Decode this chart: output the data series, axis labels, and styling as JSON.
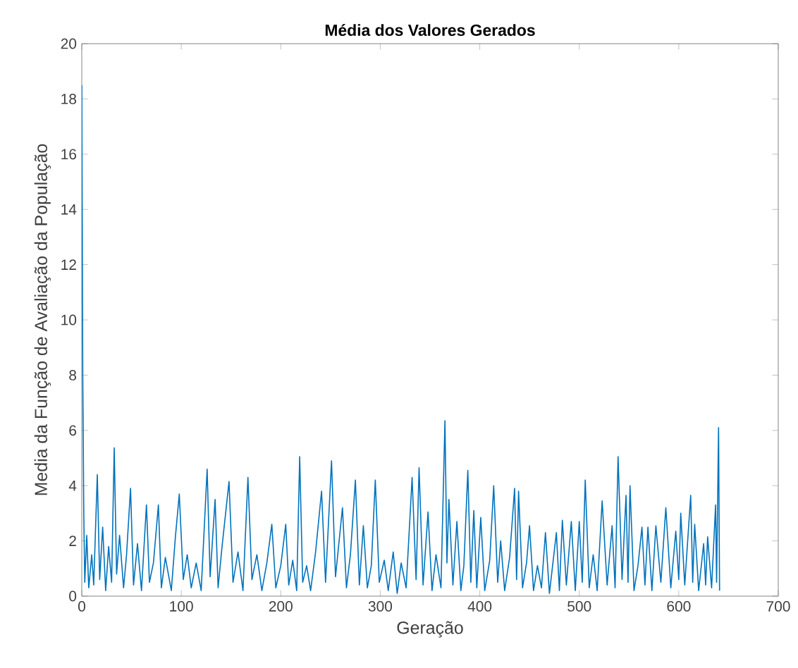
{
  "chart_data": {
    "type": "line",
    "title": "Média dos Valores Gerados",
    "xlabel": "Geração",
    "ylabel": "Media da Função de Avaliação da População",
    "x": [
      0,
      1,
      2,
      3,
      5,
      7,
      10,
      12,
      15.6,
      18,
      21,
      24,
      27,
      30,
      32.6,
      35,
      38,
      42,
      45,
      49,
      52,
      56,
      60,
      65,
      68,
      72,
      77,
      80,
      84,
      90,
      94,
      98,
      102,
      106,
      110,
      115,
      120,
      126,
      129,
      134,
      137,
      141,
      148,
      152,
      157,
      162,
      167,
      171,
      176,
      181,
      186,
      191,
      195,
      200,
      205,
      208,
      212,
      216,
      219,
      222,
      226,
      230,
      235,
      241,
      245,
      251,
      255,
      262,
      266,
      270,
      275,
      279,
      283,
      287,
      291,
      295,
      299,
      304,
      308,
      313,
      317,
      321,
      326,
      332,
      336,
      339,
      343,
      348,
      352,
      356,
      361,
      365,
      367,
      369,
      373,
      377,
      381,
      384,
      388,
      391,
      394,
      397,
      401,
      405,
      410,
      414,
      418,
      421,
      425,
      430,
      435,
      437,
      439,
      443,
      447,
      450,
      454,
      458,
      462,
      466,
      470,
      477,
      480,
      483,
      487,
      492,
      496,
      500,
      503,
      506,
      510,
      514,
      518,
      523,
      528,
      533,
      536,
      539,
      543,
      547,
      549,
      551,
      555,
      559,
      563,
      566,
      569,
      573,
      577,
      582,
      587,
      592,
      597,
      600,
      602,
      606,
      612,
      614,
      616,
      620,
      625,
      627,
      629,
      633,
      637,
      638,
      640,
      641
    ],
    "values": [
      18.5,
      8,
      3,
      0.5,
      2.2,
      0.3,
      1.5,
      0.4,
      4.4,
      0.6,
      2.5,
      0.2,
      1.8,
      0.5,
      5.37,
      0.8,
      2.2,
      0.3,
      1.5,
      3.9,
      0.4,
      1.9,
      0.2,
      3.3,
      0.5,
      1.2,
      3.3,
      0.3,
      1.4,
      0.2,
      2.1,
      3.7,
      0.6,
      1.5,
      0.3,
      1.2,
      0.2,
      4.6,
      0.7,
      3.5,
      0.3,
      1.8,
      4.15,
      0.5,
      1.6,
      0.2,
      4.3,
      0.6,
      1.5,
      0.2,
      1.2,
      2.6,
      0.3,
      1.1,
      2.6,
      0.4,
      1.3,
      0.2,
      5.05,
      0.5,
      1.1,
      0.2,
      1.6,
      3.8,
      0.5,
      4.9,
      0.7,
      3.2,
      0.3,
      1.5,
      4.2,
      0.4,
      2.55,
      0.3,
      1.1,
      4.2,
      0.5,
      1.3,
      0.2,
      1.6,
      0.1,
      1.2,
      0.3,
      4.3,
      0.6,
      4.65,
      0.4,
      3.05,
      0.2,
      1.5,
      0.3,
      6.35,
      1.2,
      3.5,
      0.4,
      2.7,
      0.2,
      1.1,
      4.55,
      0.5,
      3.1,
      0.3,
      2.85,
      0.2,
      1.3,
      4.0,
      0.5,
      2.0,
      0.2,
      1.4,
      3.9,
      0.6,
      3.8,
      0.3,
      1.2,
      2.55,
      0.2,
      1.1,
      0.3,
      2.3,
      0.1,
      2.3,
      0.2,
      2.75,
      0.4,
      2.7,
      0.2,
      2.7,
      0.5,
      4.2,
      0.3,
      1.5,
      0.2,
      3.45,
      0.4,
      2.55,
      0.3,
      5.05,
      0.6,
      3.65,
      0.5,
      4.0,
      0.2,
      1.1,
      2.5,
      0.4,
      2.5,
      0.2,
      2.55,
      0.5,
      3.2,
      0.3,
      2.35,
      0.6,
      3.0,
      0.4,
      3.65,
      0.5,
      2.6,
      0.2,
      1.9,
      0.4,
      2.15,
      0.3,
      3.3,
      0.5,
      6.1,
      0.2
    ],
    "color": "#0072bd",
    "xlim": [
      0,
      700
    ],
    "ylim": [
      0,
      20
    ],
    "xticks": [
      0,
      100,
      200,
      300,
      400,
      500,
      600,
      700
    ],
    "yticks": [
      0,
      2,
      4,
      6,
      8,
      10,
      12,
      14,
      16,
      18,
      20
    ],
    "grid": false
  }
}
